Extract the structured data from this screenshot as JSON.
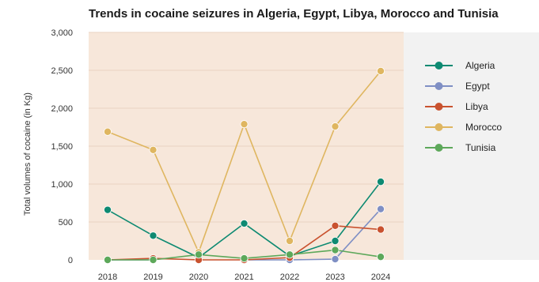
{
  "chart_data": {
    "type": "line",
    "title": "Trends in cocaine seizures in Algeria, Egypt, Libya, Morocco and Tunisia",
    "ylabel": "Total volumes of cocaine (in Kg)",
    "xlabel": "",
    "categories": [
      "2018",
      "2019",
      "2020",
      "2021",
      "2022",
      "2023",
      "2024"
    ],
    "ylim": [
      0,
      3000
    ],
    "yticks": [
      0,
      500,
      1000,
      1500,
      2000,
      2500,
      3000
    ],
    "ytick_labels": [
      "0",
      "500",
      "1,000",
      "1,500",
      "2,000",
      "2,500",
      "3,000"
    ],
    "grid": true,
    "legend_position": "right",
    "plot_background": "#f7e7da",
    "series": [
      {
        "name": "Algeria",
        "color": "#0e8a72",
        "values": [
          660,
          320,
          30,
          480,
          50,
          250,
          1030
        ]
      },
      {
        "name": "Egypt",
        "color": "#7f8fc4",
        "values": [
          0,
          0,
          null,
          0,
          0,
          10,
          670
        ]
      },
      {
        "name": "Libya",
        "color": "#c9522f",
        "values": [
          0,
          20,
          0,
          0,
          30,
          450,
          400
        ]
      },
      {
        "name": "Morocco",
        "color": "#dfb660",
        "values": [
          1690,
          1450,
          100,
          1790,
          250,
          1760,
          2490
        ]
      },
      {
        "name": "Tunisia",
        "color": "#5da85a",
        "values": [
          0,
          0,
          70,
          20,
          70,
          130,
          40
        ]
      }
    ]
  }
}
